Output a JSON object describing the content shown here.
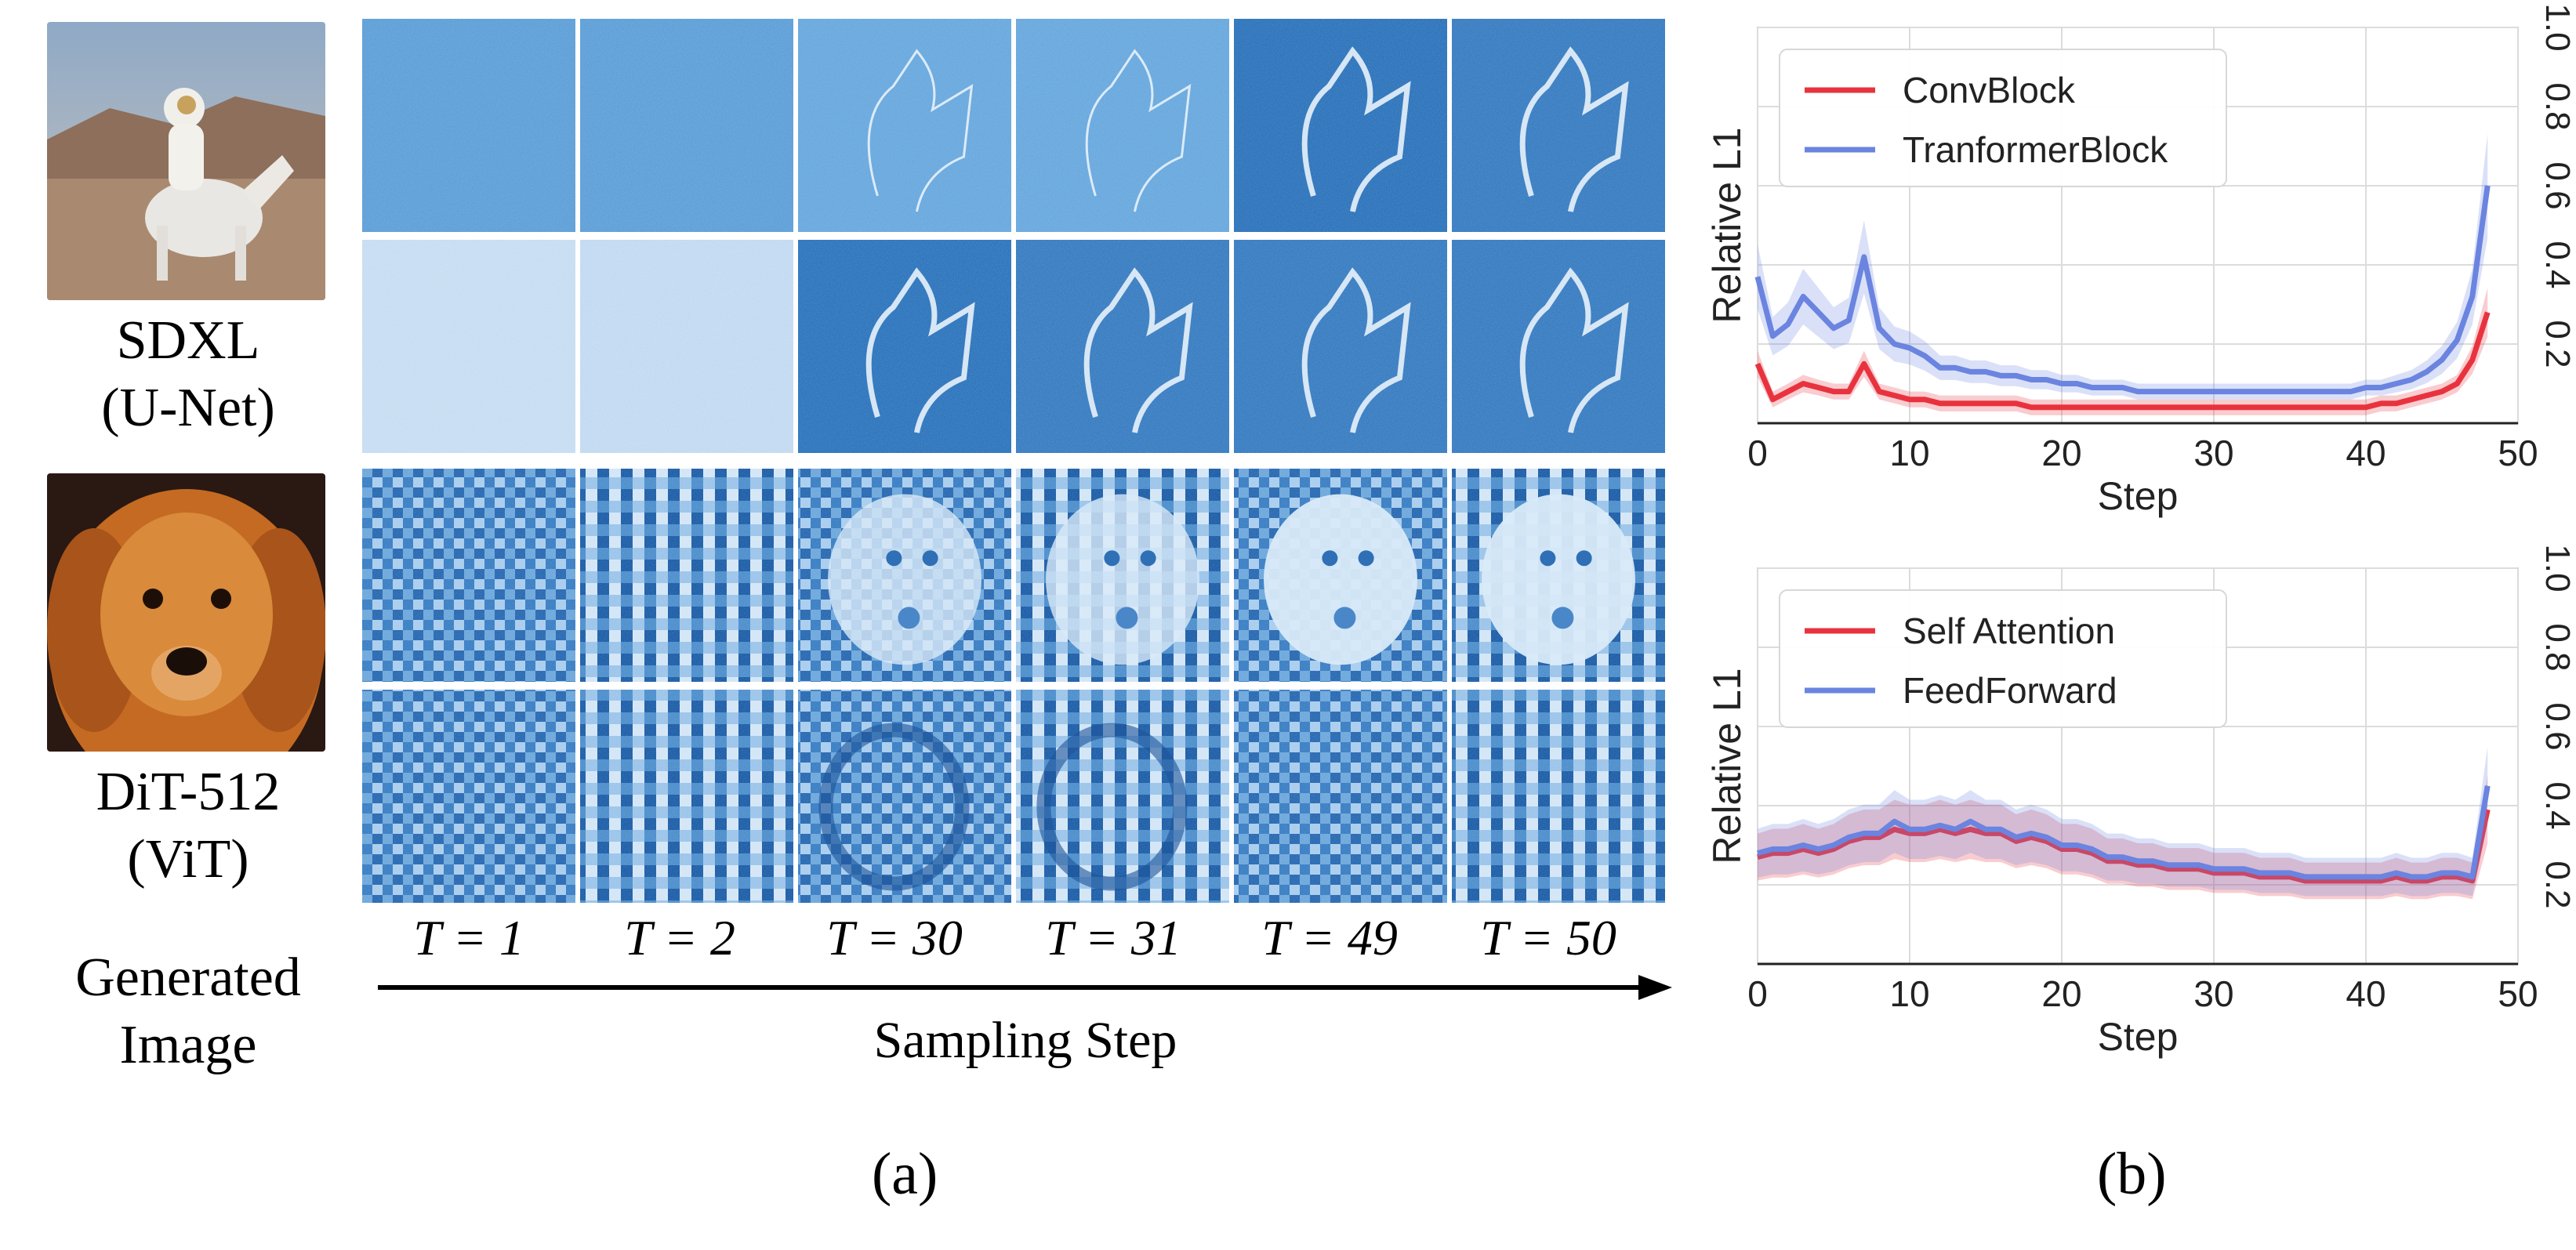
{
  "figure": {
    "models": [
      {
        "name": "SDXL",
        "arch": "(U-Net)"
      },
      {
        "name": "DiT-512",
        "arch": "(ViT)"
      }
    ],
    "generated_label_line1": "Generated",
    "generated_label_line2": "Image",
    "steps": [
      "T = 1",
      "T = 2",
      "T = 30",
      "T = 31",
      "T = 49",
      "T = 50"
    ],
    "axis_label": "Sampling Step",
    "panel_a": "(a)",
    "panel_b": "(b)"
  },
  "chart_data": [
    {
      "type": "line",
      "xlabel": "Step",
      "ylabel": "Relative L1",
      "xlim": [
        0,
        50
      ],
      "ylim": [
        0,
        1.0
      ],
      "xticks": [
        "0",
        "10",
        "20",
        "30",
        "40",
        "50"
      ],
      "yticks": [
        "0.2",
        "0.4",
        "0.6",
        "0.8",
        "1.0"
      ],
      "grid": true,
      "legend": "top-left",
      "series": [
        {
          "name": "ConvBlock",
          "color": "#e8333f",
          "x": [
            0,
            1,
            2,
            3,
            4,
            5,
            6,
            7,
            8,
            9,
            10,
            11,
            12,
            13,
            14,
            15,
            16,
            17,
            18,
            19,
            20,
            21,
            22,
            23,
            24,
            25,
            26,
            27,
            28,
            29,
            30,
            31,
            32,
            33,
            34,
            35,
            36,
            37,
            38,
            39,
            40,
            41,
            42,
            43,
            44,
            45,
            46,
            47,
            48
          ],
          "values": [
            0.15,
            0.06,
            0.08,
            0.1,
            0.09,
            0.08,
            0.08,
            0.15,
            0.08,
            0.07,
            0.06,
            0.06,
            0.05,
            0.05,
            0.05,
            0.05,
            0.05,
            0.05,
            0.04,
            0.04,
            0.04,
            0.04,
            0.04,
            0.04,
            0.04,
            0.04,
            0.04,
            0.04,
            0.04,
            0.04,
            0.04,
            0.04,
            0.04,
            0.04,
            0.04,
            0.04,
            0.04,
            0.04,
            0.04,
            0.04,
            0.04,
            0.05,
            0.05,
            0.06,
            0.07,
            0.08,
            0.1,
            0.16,
            0.28
          ]
        },
        {
          "name": "TranformerBlock",
          "color": "#6a84e0",
          "x": [
            0,
            1,
            2,
            3,
            4,
            5,
            6,
            7,
            8,
            9,
            10,
            11,
            12,
            13,
            14,
            15,
            16,
            17,
            18,
            19,
            20,
            21,
            22,
            23,
            24,
            25,
            26,
            27,
            28,
            29,
            30,
            31,
            32,
            33,
            34,
            35,
            36,
            37,
            38,
            39,
            40,
            41,
            42,
            43,
            44,
            45,
            46,
            47,
            48
          ],
          "values": [
            0.37,
            0.22,
            0.25,
            0.32,
            0.28,
            0.24,
            0.26,
            0.42,
            0.24,
            0.2,
            0.19,
            0.17,
            0.14,
            0.14,
            0.13,
            0.13,
            0.12,
            0.12,
            0.11,
            0.11,
            0.1,
            0.1,
            0.09,
            0.09,
            0.09,
            0.08,
            0.08,
            0.08,
            0.08,
            0.08,
            0.08,
            0.08,
            0.08,
            0.08,
            0.08,
            0.08,
            0.08,
            0.08,
            0.08,
            0.08,
            0.09,
            0.09,
            0.1,
            0.11,
            0.13,
            0.16,
            0.21,
            0.32,
            0.6
          ]
        }
      ]
    },
    {
      "type": "line",
      "xlabel": "Step",
      "ylabel": "Relative L1",
      "xlim": [
        0,
        50
      ],
      "ylim": [
        0,
        1.0
      ],
      "xticks": [
        "0",
        "10",
        "20",
        "30",
        "40",
        "50"
      ],
      "yticks": [
        "0.2",
        "0.4",
        "0.6",
        "0.8",
        "1.0"
      ],
      "grid": true,
      "legend": "top-left",
      "series": [
        {
          "name": "Self Attention",
          "color": "#e8333f",
          "x": [
            0,
            1,
            2,
            3,
            4,
            5,
            6,
            7,
            8,
            9,
            10,
            11,
            12,
            13,
            14,
            15,
            16,
            17,
            18,
            19,
            20,
            21,
            22,
            23,
            24,
            25,
            26,
            27,
            28,
            29,
            30,
            31,
            32,
            33,
            34,
            35,
            36,
            37,
            38,
            39,
            40,
            41,
            42,
            43,
            44,
            45,
            46,
            47,
            48
          ],
          "values": [
            0.27,
            0.28,
            0.28,
            0.29,
            0.28,
            0.29,
            0.31,
            0.32,
            0.32,
            0.34,
            0.33,
            0.33,
            0.34,
            0.33,
            0.34,
            0.33,
            0.33,
            0.31,
            0.32,
            0.31,
            0.29,
            0.29,
            0.28,
            0.26,
            0.26,
            0.25,
            0.25,
            0.24,
            0.24,
            0.24,
            0.23,
            0.23,
            0.23,
            0.22,
            0.22,
            0.22,
            0.21,
            0.21,
            0.21,
            0.21,
            0.21,
            0.21,
            0.22,
            0.21,
            0.21,
            0.22,
            0.22,
            0.21,
            0.39
          ]
        },
        {
          "name": "FeedForward",
          "color": "#6a84e0",
          "x": [
            0,
            1,
            2,
            3,
            4,
            5,
            6,
            7,
            8,
            9,
            10,
            11,
            12,
            13,
            14,
            15,
            16,
            17,
            18,
            19,
            20,
            21,
            22,
            23,
            24,
            25,
            26,
            27,
            28,
            29,
            30,
            31,
            32,
            33,
            34,
            35,
            36,
            37,
            38,
            39,
            40,
            41,
            42,
            43,
            44,
            45,
            46,
            47,
            48
          ],
          "values": [
            0.28,
            0.29,
            0.29,
            0.3,
            0.29,
            0.3,
            0.32,
            0.33,
            0.33,
            0.36,
            0.34,
            0.34,
            0.35,
            0.34,
            0.36,
            0.34,
            0.34,
            0.32,
            0.33,
            0.32,
            0.3,
            0.3,
            0.29,
            0.27,
            0.27,
            0.26,
            0.26,
            0.25,
            0.25,
            0.25,
            0.24,
            0.24,
            0.24,
            0.23,
            0.23,
            0.23,
            0.22,
            0.22,
            0.22,
            0.22,
            0.22,
            0.22,
            0.23,
            0.22,
            0.22,
            0.23,
            0.23,
            0.22,
            0.45
          ]
        }
      ]
    }
  ]
}
